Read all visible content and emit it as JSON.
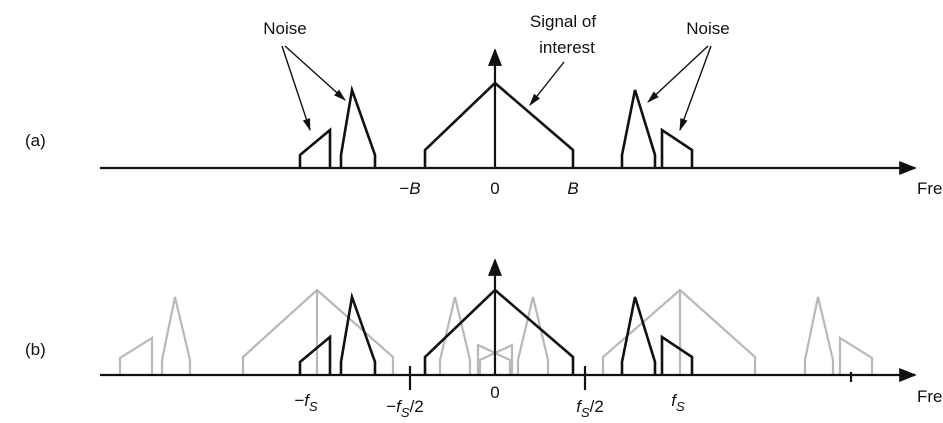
{
  "panel_a": {
    "label": "(a)",
    "noise_left": "Noise",
    "noise_right": "Noise",
    "signal_line1": "Signal of",
    "signal_line2": "interest",
    "ticks": [
      {
        "prefix": "−",
        "base": "B"
      },
      {
        "base": "0"
      },
      {
        "base": "B"
      }
    ],
    "axis_label": "Freq"
  },
  "panel_b": {
    "label": "(b)",
    "ticks": [
      {
        "prefix": "−",
        "base": "f",
        "sub": "S"
      },
      {
        "prefix": "−",
        "base": "f",
        "sub": "S",
        "suffix": "/2"
      },
      {
        "base": "0"
      },
      {
        "base": "f",
        "sub": "S",
        "suffix": "/2"
      },
      {
        "base": "f",
        "sub": "S"
      }
    ],
    "axis_label": "Freq"
  }
}
